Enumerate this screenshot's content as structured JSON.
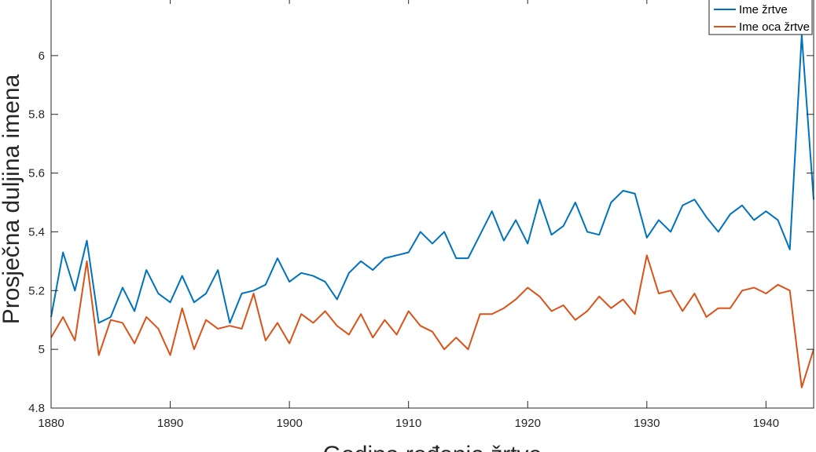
{
  "chart_data": {
    "type": "line",
    "title": "",
    "xlabel": "Godina rođenja žrtve",
    "ylabel": "Prosječna duljina imena",
    "xlim": [
      1880,
      1944
    ],
    "ylim": [
      4.8,
      6.2
    ],
    "xticks": [
      1880,
      1890,
      1900,
      1910,
      1920,
      1930,
      1940
    ],
    "yticks": [
      4.8,
      5,
      5.2,
      5.4,
      5.6,
      5.8,
      6
    ],
    "ytick_labels": [
      "4.8",
      "5",
      "5.2",
      "5.4",
      "5.6",
      "5.8",
      "6"
    ],
    "grid": false,
    "legend_position": "top-right",
    "x": [
      1880,
      1881,
      1882,
      1883,
      1884,
      1885,
      1886,
      1887,
      1888,
      1889,
      1890,
      1891,
      1892,
      1893,
      1894,
      1895,
      1896,
      1897,
      1898,
      1899,
      1900,
      1901,
      1902,
      1903,
      1904,
      1905,
      1906,
      1907,
      1908,
      1909,
      1910,
      1911,
      1912,
      1913,
      1914,
      1915,
      1916,
      1917,
      1918,
      1919,
      1920,
      1921,
      1922,
      1923,
      1924,
      1925,
      1926,
      1927,
      1928,
      1929,
      1930,
      1931,
      1932,
      1933,
      1934,
      1935,
      1936,
      1937,
      1938,
      1939,
      1940,
      1941,
      1942,
      1943,
      1944
    ],
    "series": [
      {
        "name": "Ime žrtve",
        "color": "#0072bd",
        "values": [
          5.11,
          5.33,
          5.2,
          5.37,
          5.09,
          5.11,
          5.21,
          5.13,
          5.27,
          5.19,
          5.16,
          5.25,
          5.16,
          5.19,
          5.27,
          5.09,
          5.19,
          5.2,
          5.22,
          5.31,
          5.23,
          5.26,
          5.25,
          5.23,
          5.17,
          5.26,
          5.3,
          5.27,
          5.31,
          5.32,
          5.33,
          5.4,
          5.36,
          5.4,
          5.31,
          5.31,
          5.39,
          5.47,
          5.37,
          5.44,
          5.36,
          5.51,
          5.39,
          5.42,
          5.5,
          5.4,
          5.39,
          5.5,
          5.54,
          5.53,
          5.38,
          5.44,
          5.4,
          5.49,
          5.51,
          5.45,
          5.4,
          5.46,
          5.49,
          5.44,
          5.47,
          5.44,
          5.34,
          6.07,
          5.51
        ]
      },
      {
        "name": "Ime oca žrtve",
        "color": "#d95319",
        "values": [
          5.04,
          5.11,
          5.03,
          5.3,
          4.98,
          5.1,
          5.09,
          5.02,
          5.11,
          5.07,
          4.98,
          5.14,
          5.0,
          5.1,
          5.07,
          5.08,
          5.07,
          5.19,
          5.03,
          5.09,
          5.02,
          5.12,
          5.09,
          5.13,
          5.08,
          5.05,
          5.12,
          5.04,
          5.1,
          5.05,
          5.13,
          5.08,
          5.06,
          5.0,
          5.04,
          5.0,
          5.12,
          5.12,
          5.14,
          5.17,
          5.21,
          5.18,
          5.13,
          5.15,
          5.1,
          5.13,
          5.18,
          5.14,
          5.17,
          5.12,
          5.32,
          5.19,
          5.2,
          5.13,
          5.19,
          5.11,
          5.14,
          5.14,
          5.2,
          5.21,
          5.19,
          5.22,
          5.2,
          4.87,
          5.0
        ]
      }
    ]
  }
}
